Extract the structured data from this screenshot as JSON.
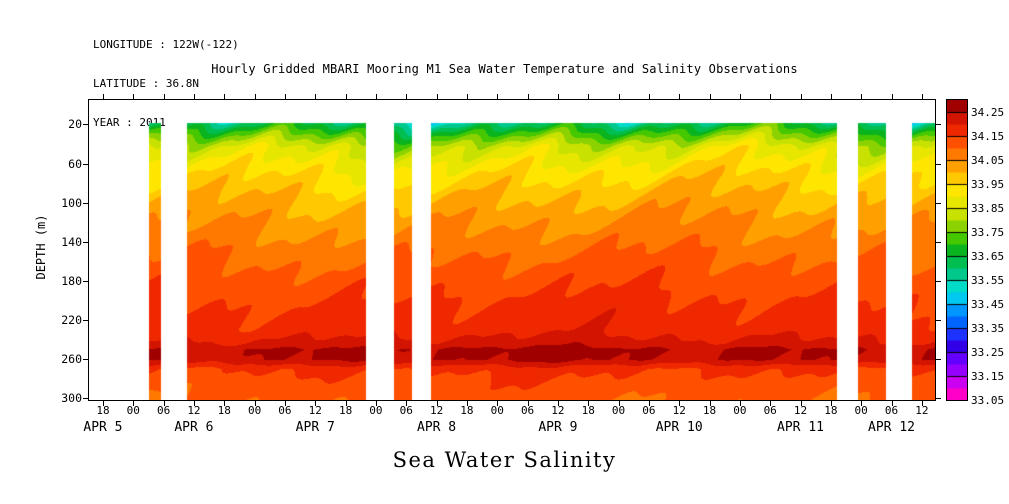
{
  "header": {
    "longitude": "LONGITUDE : 122W(-122)",
    "latitude": "LATITUDE : 36.8N",
    "year": "YEAR : 2011"
  },
  "title": "Hourly Gridded MBARI Mooring M1 Sea Water Temperature and Salinity Observations",
  "footer_label": "Sea Water Salinity",
  "chart_data": {
    "type": "heatmap",
    "title": "Hourly Gridded MBARI Mooring M1 Sea Water Temperature and Salinity Observations",
    "xlabel": "Sea Water Salinity",
    "ylabel": "DEPTH (m)",
    "y_ticks": [
      20,
      60,
      100,
      140,
      180,
      220,
      260,
      300
    ],
    "y_range": [
      -5,
      302
    ],
    "x_tick_labels": [
      "18",
      "00",
      "06",
      "12",
      "18",
      "00",
      "06",
      "12",
      "18",
      "00",
      "06",
      "12",
      "18",
      "00",
      "06",
      "12",
      "18",
      "00",
      "06",
      "12",
      "18",
      "00",
      "06",
      "12",
      "18",
      "00",
      "06",
      "12"
    ],
    "date_labels": [
      {
        "label": "APR 5",
        "tick_index": 0
      },
      {
        "label": "APR 6",
        "tick_index": 3
      },
      {
        "label": "APR 7",
        "tick_index": 7
      },
      {
        "label": "APR 8",
        "tick_index": 11
      },
      {
        "label": "APR 9",
        "tick_index": 15
      },
      {
        "label": "APR 10",
        "tick_index": 19
      },
      {
        "label": "APR 11",
        "tick_index": 23
      },
      {
        "label": "APR 12",
        "tick_index": 26
      }
    ],
    "colorbar": {
      "tick_labels": [
        "34.25",
        "34.15",
        "34.05",
        "33.95",
        "33.85",
        "33.75",
        "33.65",
        "33.55",
        "33.45",
        "33.35",
        "33.25",
        "33.15",
        "33.05"
      ],
      "range": [
        33.05,
        34.3
      ],
      "segment_step": 0.05,
      "colors_bottom_to_top": [
        "#FF00C8",
        "#CC00F0",
        "#9600FF",
        "#6400FF",
        "#3200E6",
        "#1E32FF",
        "#0064FF",
        "#0096FF",
        "#00C8F0",
        "#00DCC8",
        "#00C88C",
        "#00BE50",
        "#0AB41E",
        "#46C800",
        "#8CD200",
        "#C8E100",
        "#E6E600",
        "#FFE600",
        "#FFC800",
        "#FFA000",
        "#FF7800",
        "#FF5000",
        "#F02800",
        "#D21400",
        "#A00000"
      ]
    },
    "depth_profile": {
      "depths": [
        18,
        25,
        33,
        42,
        55,
        70,
        95,
        130,
        170,
        205,
        230,
        244,
        250,
        260,
        270,
        285,
        302
      ],
      "salinity": [
        33.6,
        33.68,
        33.76,
        33.84,
        33.89,
        33.94,
        34.0,
        34.06,
        34.12,
        34.16,
        34.18,
        34.22,
        34.26,
        34.25,
        34.16,
        34.13,
        34.11
      ]
    },
    "data_segments": [
      [
        0.07,
        0.085
      ],
      [
        0.115,
        0.327
      ],
      [
        0.36,
        0.381
      ],
      [
        0.404,
        0.883
      ],
      [
        0.908,
        0.942
      ],
      [
        0.972,
        1.0
      ]
    ]
  }
}
